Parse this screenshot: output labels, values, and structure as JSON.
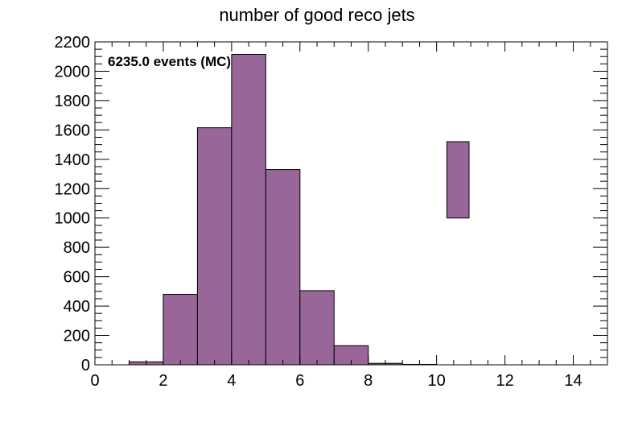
{
  "chart_data": {
    "type": "bar",
    "title": "number of good reco jets",
    "annotation": "6235.0 events (MC)",
    "xlabel": "",
    "ylabel": "",
    "xlim": [
      0,
      15
    ],
    "ylim": [
      0,
      2200
    ],
    "xticks": [
      0,
      2,
      4,
      6,
      8,
      10,
      12,
      14
    ],
    "yticks": [
      0,
      200,
      400,
      600,
      800,
      1000,
      1200,
      1400,
      1600,
      1800,
      2000,
      2200
    ],
    "bin_width": 1,
    "bins": [
      {
        "x0": 1,
        "x1": 2,
        "value": 20
      },
      {
        "x0": 2,
        "x1": 3,
        "value": 480
      },
      {
        "x0": 3,
        "x1": 4,
        "value": 1615
      },
      {
        "x0": 4,
        "x1": 5,
        "value": 2115
      },
      {
        "x0": 5,
        "x1": 6,
        "value": 1330
      },
      {
        "x0": 6,
        "x1": 7,
        "value": 505
      },
      {
        "x0": 7,
        "x1": 8,
        "value": 130
      },
      {
        "x0": 8,
        "x1": 9,
        "value": 10
      },
      {
        "x0": 9,
        "x1": 10,
        "value": 3
      }
    ],
    "floating_box": {
      "x0": 10.3,
      "x1": 10.95,
      "y0": 1000,
      "y1": 1520
    },
    "fill_color": "#996699",
    "line_color": "#000000",
    "grid": false
  }
}
